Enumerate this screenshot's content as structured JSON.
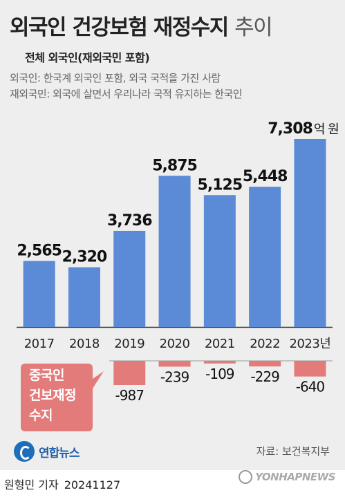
{
  "title_main": "외국인 건강보험 재정수지",
  "title_light": "추이",
  "subtitle": "전체 외국인(재외국민 포함)",
  "notes": [
    "외국인: 한국계 외국인 포함, 외국 국적을 가진 사람",
    "재외국민: 외국에 살면서 우리나라 국적 유지하는 한국인"
  ],
  "callout": [
    "중국인",
    "건보재정",
    "수지"
  ],
  "logo": "연합뉴스",
  "source": "자료: 보건복지부",
  "byline": {
    "author": "원형민 기자",
    "date": "20241127"
  },
  "watermark": "YONHAPNEWS",
  "colors": {
    "positive": "#5b8ad6",
    "negative": "#e47b7b",
    "background": "#eeeeee"
  },
  "chart_data": {
    "type": "bar",
    "categories": [
      "2017",
      "2018",
      "2019",
      "2020",
      "2021",
      "2022",
      "2023년"
    ],
    "unit": "억 원",
    "series": [
      {
        "name": "전체 외국인(재외국민 포함)",
        "values": [
          2565,
          2320,
          3736,
          5875,
          5125,
          5448,
          7308
        ],
        "labels": [
          "2,565",
          "2,320",
          "3,736",
          "5,875",
          "5,125",
          "5,448",
          "7,308"
        ]
      },
      {
        "name": "중국인 건보재정 수지",
        "values": [
          null,
          null,
          -987,
          -239,
          -109,
          -229,
          -640
        ],
        "labels": [
          "",
          "",
          "-987",
          "-239",
          "-109",
          "-229",
          "-640"
        ]
      }
    ],
    "grid": false,
    "legend": "none"
  }
}
